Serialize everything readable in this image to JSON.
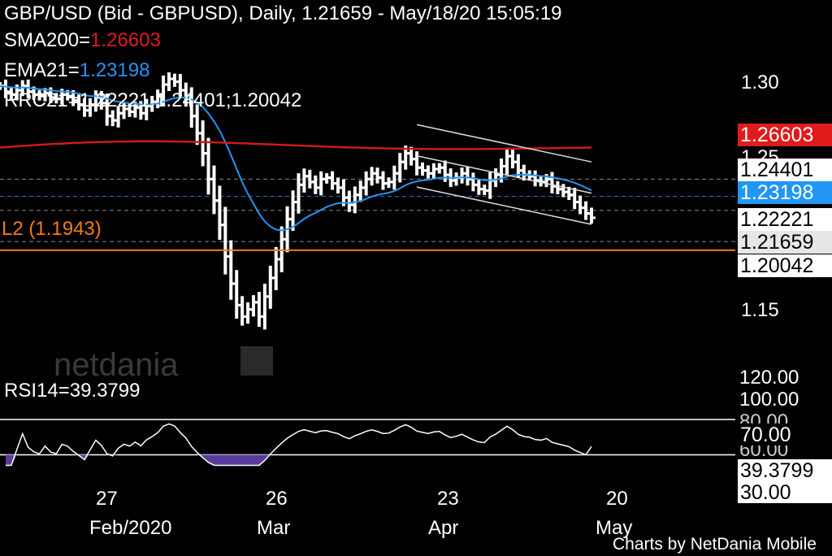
{
  "header": {
    "title": "GBP/USD (Bid - GBPUSD),  Daily, 1.21659 - May/18/20 15:05:19",
    "sma_label": "SMA200=",
    "sma_value": "1.26603",
    "ema_label": "EMA21=",
    "ema_value": "1.23198",
    "rrc_text": "RRC21=1.22221;1.24401;1.20042",
    "level_label": "L2 (1.1943)",
    "rsi_text": "RSI14=39.3799"
  },
  "watermark": "netdania",
  "footer": "Charts by NetDania Mobile",
  "colors": {
    "background": "#000000",
    "bars": "#ffffff",
    "sma": "#cc1a1a",
    "ema": "#2196f3",
    "level": "#f07c18",
    "rsi_fill": "#5b3a9e",
    "label_box": "#ffffff",
    "current_box": "#e6e6e6"
  },
  "price_axis": {
    "ticks": [
      "1.30",
      "1.25",
      "1.15"
    ],
    "boxes": [
      {
        "text": "1.26603",
        "style": "sma"
      },
      {
        "text": "1.24401",
        "style": "plain"
      },
      {
        "text": "1.23198",
        "style": "ema"
      },
      {
        "text": "1.22221",
        "style": "plain"
      },
      {
        "text": "1.21659",
        "style": "current"
      },
      {
        "text": "1.20042",
        "style": "plain"
      }
    ]
  },
  "rsi_axis": {
    "ticks": [
      "120.00",
      "100.00",
      "80.00",
      "60.00"
    ],
    "boxes": [
      "70.00",
      "39.3799",
      "30.00"
    ]
  },
  "x_axis": {
    "day_labels": [
      "27",
      "26",
      "23",
      "20"
    ],
    "month_labels": [
      "Feb/2020",
      "Mar",
      "Apr",
      "May"
    ]
  },
  "chart_data": {
    "type": "ohlc",
    "symbol": "GBP/USD",
    "timeframe": "Daily",
    "ylim": [
      1.125,
      1.335
    ],
    "rsi_ylim": [
      0,
      120
    ],
    "indicators": {
      "SMA200": 1.26603,
      "EMA21": 1.23198,
      "RRC21": [
        1.22221,
        1.24401,
        1.20042
      ],
      "L2": 1.1943,
      "RSI14": 39.3799,
      "rsi_levels": [
        70,
        30
      ]
    },
    "last_price": 1.21659,
    "closes": [
      1.309,
      1.305,
      1.303,
      1.306,
      1.309,
      1.305,
      1.303,
      1.302,
      1.304,
      1.301,
      1.3,
      1.303,
      1.302,
      1.299,
      1.296,
      1.292,
      1.296,
      1.301,
      1.297,
      1.288,
      1.285,
      1.29,
      1.293,
      1.291,
      1.294,
      1.29,
      1.295,
      1.298,
      1.302,
      1.31,
      1.314,
      1.312,
      1.306,
      1.3,
      1.288,
      1.276,
      1.262,
      1.244,
      1.229,
      1.212,
      1.19,
      1.171,
      1.156,
      1.148,
      1.153,
      1.158,
      1.148,
      1.162,
      1.175,
      1.188,
      1.202,
      1.216,
      1.228,
      1.24,
      1.246,
      1.242,
      1.238,
      1.244,
      1.245,
      1.241,
      1.238,
      1.231,
      1.226,
      1.233,
      1.238,
      1.244,
      1.248,
      1.245,
      1.241,
      1.242,
      1.248,
      1.256,
      1.262,
      1.258,
      1.252,
      1.25,
      1.248,
      1.251,
      1.252,
      1.247,
      1.243,
      1.245,
      1.248,
      1.244,
      1.24,
      1.237,
      1.236,
      1.243,
      1.247,
      1.253,
      1.26,
      1.256,
      1.25,
      1.247,
      1.246,
      1.243,
      1.242,
      1.244,
      1.239,
      1.237,
      1.235,
      1.233,
      1.228,
      1.224,
      1.22,
      1.217
    ]
  }
}
